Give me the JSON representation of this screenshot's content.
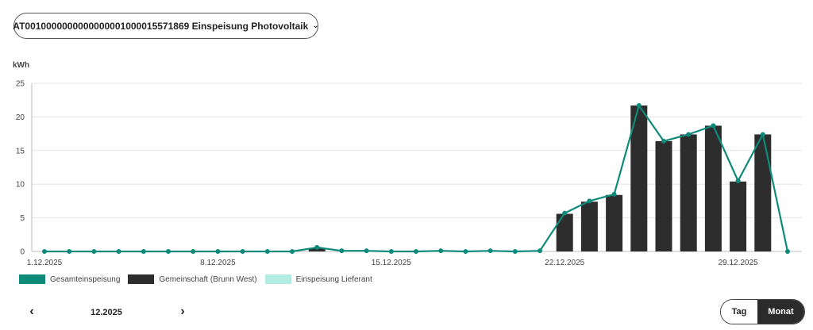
{
  "meter_selector": {
    "label": "AT0010000000000000001000015571869 Einspeisung Photovoltaik",
    "chevron_icon": "chevron-down-icon"
  },
  "chart_data": {
    "type": "bar",
    "unit_label": "kWh",
    "ylim": [
      0,
      25
    ],
    "yticks": [
      0,
      5,
      10,
      15,
      20,
      25
    ],
    "x_days": [
      "1.12.2025",
      "2.12.2025",
      "3.12.2025",
      "4.12.2025",
      "5.12.2025",
      "6.12.2025",
      "7.12.2025",
      "8.12.2025",
      "9.12.2025",
      "10.12.2025",
      "11.12.2025",
      "12.12.2025",
      "13.12.2025",
      "14.12.2025",
      "15.12.2025",
      "16.12.2025",
      "17.12.2025",
      "18.12.2025",
      "19.12.2025",
      "20.12.2025",
      "21.12.2025",
      "22.12.2025",
      "23.12.2025",
      "24.12.2025",
      "25.12.2025",
      "26.12.2025",
      "27.12.2025",
      "28.12.2025",
      "29.12.2025",
      "30.12.2025",
      "31.12.2025"
    ],
    "x_tick_labels": [
      "1.12.2025",
      "8.12.2025",
      "15.12.2025",
      "22.12.2025",
      "29.12.2025"
    ],
    "grid": true,
    "series": [
      {
        "name": "Gesamteinspeisung",
        "kind": "line",
        "color": "#0e8a7a",
        "values": [
          0.0,
          0.0,
          0.0,
          0.0,
          0.0,
          0.0,
          0.0,
          0.0,
          0.0,
          0.0,
          0.0,
          0.6,
          0.1,
          0.1,
          0.0,
          0.0,
          0.1,
          0.0,
          0.1,
          0.0,
          0.1,
          5.7,
          7.5,
          8.5,
          21.7,
          16.4,
          17.4,
          18.7,
          10.5,
          17.4,
          0.0
        ]
      },
      {
        "name": "Gemeinschaft (Brunn West)",
        "kind": "bar",
        "color": "#2d2d2d",
        "values": [
          0,
          0,
          0,
          0,
          0,
          0,
          0,
          0,
          0,
          0,
          0,
          0.5,
          0,
          0,
          0,
          0,
          0,
          0,
          0,
          0,
          0,
          5.6,
          7.4,
          8.4,
          21.7,
          16.4,
          17.4,
          18.7,
          10.4,
          17.4,
          0
        ]
      },
      {
        "name": "Einspeisung Lieferant",
        "kind": "bar",
        "color": "#b2ece3",
        "values": [
          0,
          0,
          0,
          0,
          0,
          0,
          0,
          0,
          0,
          0,
          0,
          0,
          0,
          0,
          0,
          0,
          0,
          0,
          0,
          0,
          0,
          0,
          0,
          0,
          0,
          0,
          0,
          0,
          0,
          0,
          0
        ]
      }
    ]
  },
  "period_nav": {
    "prev_icon": "chevron-left-icon",
    "label": "12.2025",
    "next_icon": "chevron-right-icon"
  },
  "view_toggle": {
    "day_label": "Tag",
    "month_label": "Monat",
    "active": "Monat"
  }
}
